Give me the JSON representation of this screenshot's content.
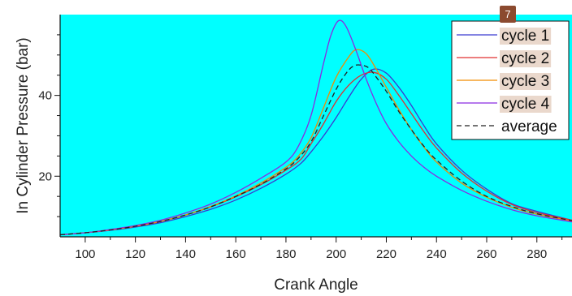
{
  "chart_data": {
    "type": "line",
    "xlabel": "Crank Angle",
    "ylabel": "In Cylinder Pressure (bar)",
    "xlim": [
      90,
      294
    ],
    "ylim": [
      5,
      60
    ],
    "xticks": [
      100,
      120,
      140,
      160,
      180,
      200,
      220,
      240,
      260,
      280
    ],
    "yticks": [
      20,
      40
    ],
    "grid": false,
    "background_color": "#00ffff",
    "legend_position": "top-right",
    "legend_badge": "7",
    "series": [
      {
        "name": "cycle 1",
        "color": "#3b3bd0",
        "dash": "solid",
        "x": [
          90,
          100,
          110,
          120,
          130,
          140,
          150,
          160,
          170,
          180,
          186,
          190,
          195,
          200,
          205,
          210,
          215,
          220,
          225,
          230,
          235,
          240,
          250,
          260,
          270,
          280,
          294
        ],
        "y": [
          5.5,
          6.0,
          6.6,
          7.4,
          8.5,
          10,
          11.8,
          14.1,
          17,
          20.5,
          23.2,
          26,
          30,
          34.5,
          39.5,
          44,
          46.5,
          45.5,
          42,
          37.5,
          32.5,
          28,
          21.5,
          16.8,
          13.2,
          11.3,
          9.1
        ]
      },
      {
        "name": "cycle 2",
        "color": "#e03030",
        "dash": "solid",
        "x": [
          90,
          100,
          110,
          120,
          130,
          140,
          150,
          160,
          170,
          180,
          186,
          190,
          195,
          200,
          205,
          210,
          215,
          220,
          225,
          230,
          235,
          240,
          250,
          260,
          270,
          280,
          294
        ],
        "y": [
          5.5,
          6.0,
          6.7,
          7.6,
          8.8,
          10.4,
          12.4,
          14.9,
          17.9,
          21.5,
          24.2,
          28,
          33,
          38.5,
          42.5,
          45,
          45.7,
          44,
          40,
          35.5,
          31,
          27,
          20.8,
          16.3,
          13,
          11,
          9.1
        ]
      },
      {
        "name": "cycle 3",
        "color": "#f28c00",
        "dash": "solid",
        "x": [
          90,
          100,
          110,
          120,
          130,
          140,
          150,
          160,
          170,
          180,
          185,
          190,
          195,
          200,
          205,
          208,
          212,
          216,
          220,
          225,
          230,
          235,
          240,
          250,
          260,
          270,
          280,
          294
        ],
        "y": [
          5.5,
          6.0,
          6.7,
          7.6,
          8.8,
          10.4,
          12.5,
          15.1,
          18.3,
          22.2,
          25,
          29.5,
          37,
          44.5,
          49.5,
          51.3,
          50.3,
          46.5,
          42,
          36.5,
          31.5,
          27.2,
          23.5,
          18.3,
          14.8,
          12.3,
          10.6,
          8.9
        ]
      },
      {
        "name": "cycle 4",
        "color": "#8a2be2",
        "dash": "solid",
        "x": [
          90,
          100,
          110,
          120,
          130,
          140,
          150,
          160,
          170,
          180,
          185,
          190,
          195,
          198,
          201,
          204,
          208,
          212,
          216,
          220,
          225,
          230,
          235,
          240,
          250,
          260,
          270,
          280,
          294
        ],
        "y": [
          5.5,
          6.0,
          6.8,
          7.8,
          9.1,
          10.9,
          13.1,
          16,
          19.5,
          23.5,
          27.5,
          35,
          48,
          55,
          58.5,
          57,
          51,
          44,
          38,
          33,
          28.5,
          25,
          22.2,
          20,
          16.5,
          13.8,
          11.7,
          10.2,
          8.7
        ]
      },
      {
        "name": "average",
        "color": "#222222",
        "dash": "dashed",
        "x": [
          90,
          100,
          110,
          120,
          130,
          140,
          150,
          160,
          170,
          180,
          185,
          190,
          195,
          200,
          204,
          207,
          210,
          213,
          216,
          220,
          225,
          230,
          235,
          240,
          250,
          260,
          270,
          280,
          294
        ],
        "y": [
          5.5,
          6.0,
          6.7,
          7.6,
          8.8,
          10.4,
          12.4,
          15,
          18,
          21.8,
          24.5,
          28.5,
          35,
          41.5,
          45.5,
          47.3,
          47.5,
          46.8,
          44.5,
          41,
          36,
          31.5,
          27.4,
          24,
          18.8,
          15,
          12.5,
          10.7,
          9
        ]
      }
    ]
  }
}
